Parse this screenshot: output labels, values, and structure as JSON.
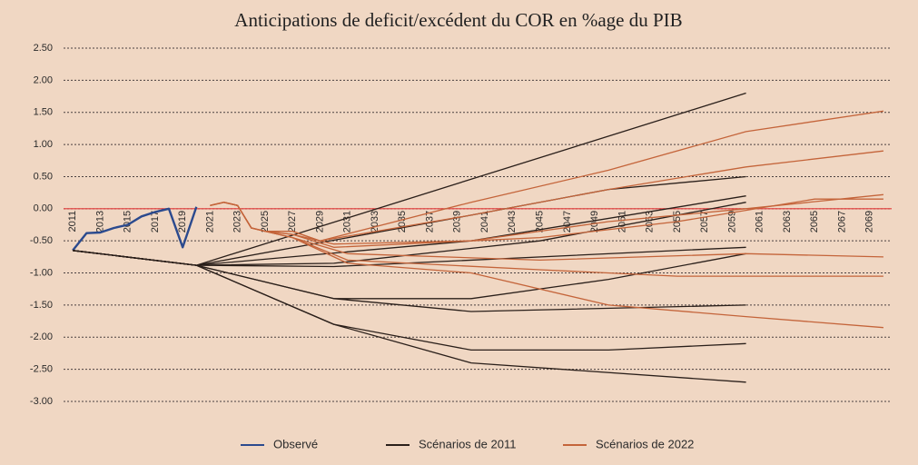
{
  "chart_data": {
    "type": "line",
    "title": "Anticipations de deficit/excédent du COR en %age du PIB",
    "xlim": [
      2010,
      2071
    ],
    "ylim": [
      -3,
      2.5
    ],
    "xticks": [
      2011,
      2013,
      2015,
      2017,
      2019,
      2021,
      2023,
      2025,
      2027,
      2029,
      2031,
      2033,
      2035,
      2037,
      2039,
      2041,
      2043,
      2045,
      2047,
      2049,
      2051,
      2053,
      2055,
      2057,
      2059,
      2061,
      2063,
      2065,
      2067,
      2069
    ],
    "yticks": [
      {
        "value": 2.5,
        "label": "2.50"
      },
      {
        "value": 2,
        "label": "2.00"
      },
      {
        "value": 1.5,
        "label": "1.50"
      },
      {
        "value": 1,
        "label": "1.00"
      },
      {
        "value": 0.5,
        "label": "0.50"
      },
      {
        "value": 0,
        "label": "0.00"
      },
      {
        "value": -0.5,
        "label": "-0.50"
      },
      {
        "value": -1,
        "label": "-1.00"
      },
      {
        "value": -1.5,
        "label": "-1.50"
      },
      {
        "value": -2,
        "label": "-2.00"
      },
      {
        "value": -2.5,
        "label": "-2.50"
      },
      {
        "value": -3,
        "label": "-3.00"
      }
    ],
    "grid": true,
    "zero_line_color": "#e23a3a",
    "legend": "bottom",
    "series": [
      {
        "name": "Observé",
        "color": "#2b4a8e",
        "lines": [
          {
            "x": [
              2011,
              2012,
              2013,
              2014,
              2015,
              2016,
              2017,
              2018,
              2019,
              2020
            ],
            "values": [
              -0.65,
              -0.38,
              -0.37,
              -0.3,
              -0.25,
              -0.12,
              -0.05,
              0.0,
              -0.6,
              0.03
            ]
          }
        ]
      },
      {
        "name": "Scénarios de 2011",
        "color": "#2a1f1a",
        "lines": [
          {
            "x": [
              2011,
              2020,
              2060
            ],
            "values": [
              -0.65,
              -0.88,
              1.8
            ]
          },
          {
            "x": [
              2011,
              2020,
              2040,
              2050,
              2060
            ],
            "values": [
              -0.65,
              -0.88,
              -0.1,
              0.3,
              0.5
            ]
          },
          {
            "x": [
              2011,
              2020,
              2040,
              2060
            ],
            "values": [
              -0.65,
              -0.88,
              -0.5,
              0.2
            ]
          },
          {
            "x": [
              2011,
              2020,
              2030,
              2045,
              2060
            ],
            "values": [
              -0.65,
              -0.88,
              -0.85,
              -0.5,
              0.1
            ]
          },
          {
            "x": [
              2011,
              2020,
              2030,
              2060
            ],
            "values": [
              -0.65,
              -0.88,
              -0.9,
              -0.6
            ]
          },
          {
            "x": [
              2011,
              2020,
              2030,
              2040,
              2050,
              2060
            ],
            "values": [
              -0.65,
              -0.88,
              -1.4,
              -1.4,
              -1.1,
              -0.7
            ]
          },
          {
            "x": [
              2011,
              2020,
              2030,
              2040,
              2060
            ],
            "values": [
              -0.65,
              -0.88,
              -1.4,
              -1.6,
              -1.5
            ]
          },
          {
            "x": [
              2011,
              2020,
              2030,
              2040,
              2050,
              2060
            ],
            "values": [
              -0.65,
              -0.88,
              -1.8,
              -2.2,
              -2.2,
              -2.1
            ]
          },
          {
            "x": [
              2011,
              2020,
              2030,
              2040,
              2060
            ],
            "values": [
              -0.65,
              -0.88,
              -1.8,
              -2.4,
              -2.7
            ]
          }
        ]
      },
      {
        "name": "Scénarios de 2022",
        "color": "#c4643a",
        "lines": [
          {
            "x": [
              2021,
              2022,
              2023,
              2024,
              2025,
              2027,
              2029,
              2040,
              2050,
              2060,
              2070
            ],
            "values": [
              0.05,
              0.1,
              0.05,
              -0.3,
              -0.35,
              -0.35,
              -0.5,
              0.1,
              0.6,
              1.2,
              1.52
            ]
          },
          {
            "x": [
              2021,
              2022,
              2023,
              2024,
              2025,
              2027,
              2029,
              2040,
              2050,
              2060,
              2070
            ],
            "values": [
              0.05,
              0.1,
              0.05,
              -0.3,
              -0.35,
              -0.35,
              -0.5,
              -0.1,
              0.3,
              0.65,
              0.9
            ]
          },
          {
            "x": [
              2021,
              2022,
              2023,
              2024,
              2025,
              2027,
              2030,
              2040,
              2050,
              2060,
              2070
            ],
            "values": [
              0.05,
              0.1,
              0.05,
              -0.3,
              -0.35,
              -0.4,
              -0.55,
              -0.5,
              -0.2,
              0.0,
              0.22
            ]
          },
          {
            "x": [
              2021,
              2022,
              2023,
              2024,
              2025,
              2027,
              2030,
              2045,
              2055,
              2065,
              2070
            ],
            "values": [
              0.05,
              0.1,
              0.05,
              -0.3,
              -0.35,
              -0.4,
              -0.6,
              -0.45,
              -0.2,
              0.15,
              0.15
            ]
          },
          {
            "x": [
              2021,
              2022,
              2023,
              2024,
              2025,
              2027,
              2031,
              2045,
              2060,
              2070
            ],
            "values": [
              0.05,
              0.1,
              0.05,
              -0.3,
              -0.35,
              -0.45,
              -0.7,
              -0.8,
              -0.7,
              -0.75
            ]
          },
          {
            "x": [
              2021,
              2022,
              2023,
              2024,
              2025,
              2027,
              2031,
              2045,
              2055,
              2070
            ],
            "values": [
              0.05,
              0.1,
              0.05,
              -0.3,
              -0.35,
              -0.45,
              -0.8,
              -0.95,
              -1.05,
              -1.05
            ]
          },
          {
            "x": [
              2021,
              2022,
              2023,
              2024,
              2025,
              2027,
              2031,
              2040,
              2050,
              2060,
              2070
            ],
            "values": [
              0.05,
              0.1,
              0.05,
              -0.3,
              -0.35,
              -0.45,
              -0.85,
              -1.0,
              -1.5,
              -1.68,
              -1.85
            ]
          }
        ]
      }
    ]
  }
}
